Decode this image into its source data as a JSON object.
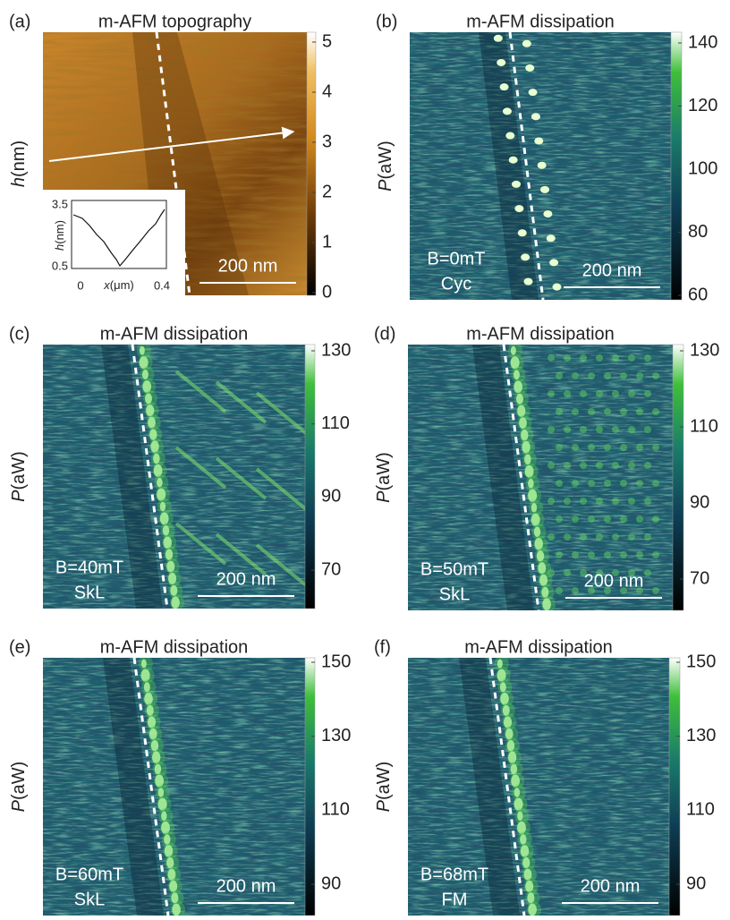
{
  "panels": [
    {
      "label": "(a)",
      "title": "m-AFM topography",
      "axis_symbol": "h",
      "axis_unit": "(nm)",
      "colorbar_ticks": [
        0,
        1,
        2,
        3,
        4,
        5
      ],
      "scalebar": "200 nm",
      "inset": {
        "y_ticks": [
          3.5,
          0.5
        ],
        "x_ticks": [
          0,
          0.4
        ],
        "y_symbol": "h",
        "y_unit": "(nm)",
        "x_symbol": "x",
        "x_unit": "(μm)"
      }
    },
    {
      "label": "(b)",
      "title": "m-AFM dissipation",
      "axis_symbol": "P",
      "axis_unit": "(aW)",
      "colorbar_ticks": [
        60,
        80,
        100,
        120,
        140
      ],
      "scalebar": "200 nm",
      "annotation": [
        "B=0mT",
        "Cyc"
      ]
    },
    {
      "label": "(c)",
      "title": "m-AFM dissipation",
      "axis_symbol": "P",
      "axis_unit": "(aW)",
      "colorbar_ticks": [
        70,
        90,
        110,
        130
      ],
      "scalebar": "200 nm",
      "annotation": [
        "B=40mT",
        "SkL"
      ]
    },
    {
      "label": "(d)",
      "title": "m-AFM dissipation",
      "axis_symbol": "P",
      "axis_unit": "(aW)",
      "colorbar_ticks": [
        70,
        90,
        110,
        130
      ],
      "scalebar": "200 nm",
      "annotation": [
        "B=50mT",
        "SkL"
      ]
    },
    {
      "label": "(e)",
      "title": "m-AFM dissipation",
      "axis_symbol": "P",
      "axis_unit": "(aW)",
      "colorbar_ticks": [
        90,
        110,
        130,
        150
      ],
      "scalebar": "200 nm",
      "annotation": [
        "B=60mT",
        "SkL"
      ]
    },
    {
      "label": "(f)",
      "title": "m-AFM dissipation",
      "axis_symbol": "P",
      "axis_unit": "(aW)",
      "colorbar_ticks": [
        90,
        110,
        130,
        150
      ],
      "scalebar": "200 nm",
      "annotation": [
        "B=68mT",
        "FM"
      ]
    }
  ]
}
